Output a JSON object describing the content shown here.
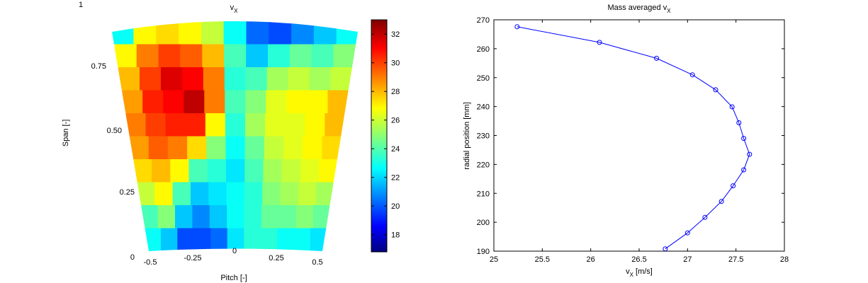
{
  "figure": {
    "corner_label": "1"
  },
  "chart_data": [
    {
      "type": "heatmap",
      "title": "v",
      "title_subscript": "X",
      "xlabel": "Pitch [-]",
      "ylabel": "Span [-]",
      "x_ticks": [
        "-0.5",
        "-0.25",
        "0",
        "0.25",
        "0.5"
      ],
      "y_ticks": [
        "0",
        "0.25",
        "0.50",
        "0.75"
      ],
      "colorbar": {
        "ticks": [
          18,
          20,
          22,
          24,
          26,
          28,
          30,
          32
        ],
        "clim": [
          16.8,
          33
        ],
        "colormap": "jet"
      },
      "grid_columns": [
        "-0.5",
        "-0.4",
        "-0.3",
        "-0.2",
        "-0.1",
        "0",
        "0.1",
        "0.2",
        "0.3",
        "0.4",
        "0.5"
      ],
      "grid_rows_span": [
        "0.95",
        "0.85",
        "0.75",
        "0.65",
        "0.55",
        "0.45",
        "0.35",
        "0.25",
        "0.15",
        "0.05"
      ],
      "values": [
        [
          23,
          27,
          27.5,
          27,
          26,
          23,
          20.5,
          20,
          21,
          22,
          23
        ],
        [
          27,
          29,
          30,
          29.5,
          28,
          24,
          22,
          23.5,
          24.5,
          24,
          25
        ],
        [
          28,
          30,
          31.5,
          31,
          29,
          23.5,
          24,
          25.5,
          26,
          25.5,
          26
        ],
        [
          28.5,
          30.5,
          31,
          32,
          29,
          24,
          25,
          26.5,
          27,
          27,
          28
        ],
        [
          29,
          30,
          30.5,
          30.5,
          27,
          23.5,
          25.5,
          26.5,
          26.5,
          27,
          28
        ],
        [
          28.5,
          29.5,
          29,
          27.5,
          25,
          23,
          24.5,
          26,
          26.5,
          27,
          27.5
        ],
        [
          27.5,
          28,
          27,
          24,
          23.5,
          22.5,
          24,
          25.5,
          26,
          26.5,
          27
        ],
        [
          26,
          27,
          24,
          22,
          22.5,
          23,
          23.5,
          25,
          25.5,
          26,
          25.5
        ],
        [
          24,
          25,
          22,
          21,
          22,
          23,
          23.5,
          24.5,
          24.5,
          25,
          24.5
        ],
        [
          23,
          22,
          20,
          20,
          20.5,
          22.5,
          23.5,
          23.5,
          23,
          23,
          22.5
        ]
      ]
    },
    {
      "type": "line",
      "title": "Mass averaged v",
      "title_subscript": "X",
      "xlabel": "v",
      "xlabel_subscript": "X",
      "xlabel_unit": " [m/s]",
      "ylabel": "radial position [mm]",
      "xlim": [
        25,
        28
      ],
      "ylim": [
        190,
        270
      ],
      "x_ticks": [
        25,
        25.5,
        26,
        26.5,
        27,
        27.5,
        28
      ],
      "y_ticks": [
        190,
        200,
        210,
        220,
        230,
        240,
        250,
        260,
        270
      ],
      "color": "#0000ff",
      "marker": "circle",
      "series": [
        {
          "x": [
            26.77,
            27.0,
            27.18,
            27.35,
            27.47,
            27.58,
            27.64,
            27.58,
            27.53,
            27.46,
            27.29,
            27.05,
            26.68,
            26.09,
            25.24
          ],
          "y": [
            190.8,
            196.3,
            201.7,
            207.2,
            212.6,
            218.1,
            223.5,
            229.0,
            234.4,
            239.9,
            245.8,
            251.0,
            256.7,
            262.2,
            267.6
          ]
        }
      ]
    }
  ]
}
